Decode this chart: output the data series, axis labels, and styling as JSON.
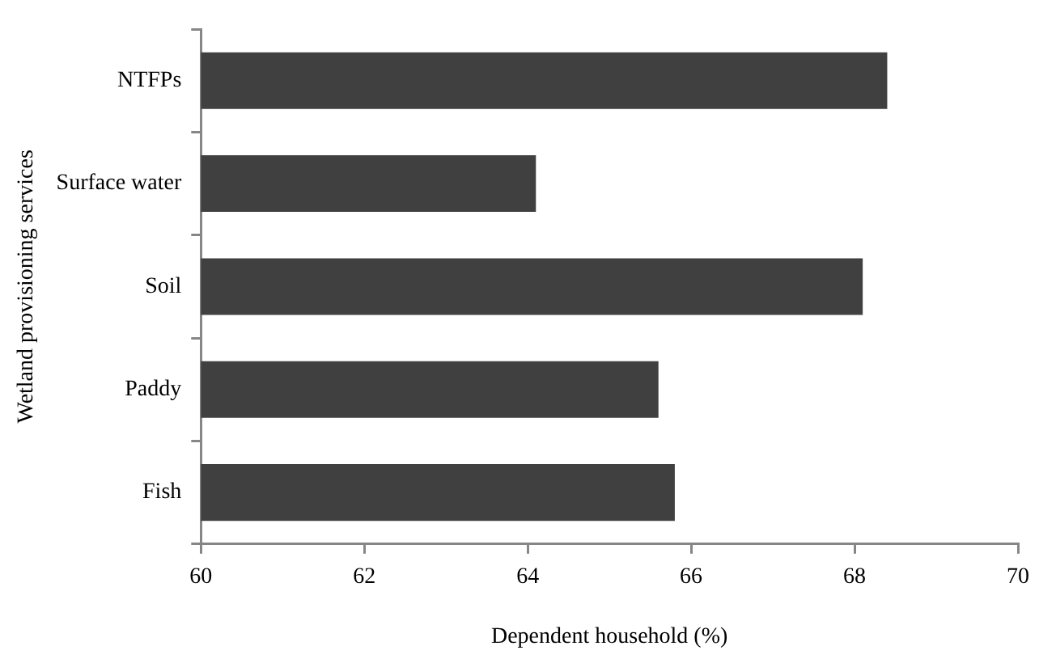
{
  "chart_data": {
    "type": "bar",
    "orientation": "horizontal",
    "xlabel": "Dependent household (%)",
    "ylabel": "Wetland provisioning services",
    "categories": [
      "NTFPs",
      "Surface water",
      "Soil",
      "Paddy",
      "Fish"
    ],
    "values": [
      68.4,
      64.1,
      68.1,
      65.6,
      65.8
    ],
    "color": "#404040",
    "xlim": [
      60,
      70
    ],
    "xticks": [
      60,
      62,
      64,
      66,
      68,
      70
    ],
    "grid": false,
    "legend": false
  }
}
